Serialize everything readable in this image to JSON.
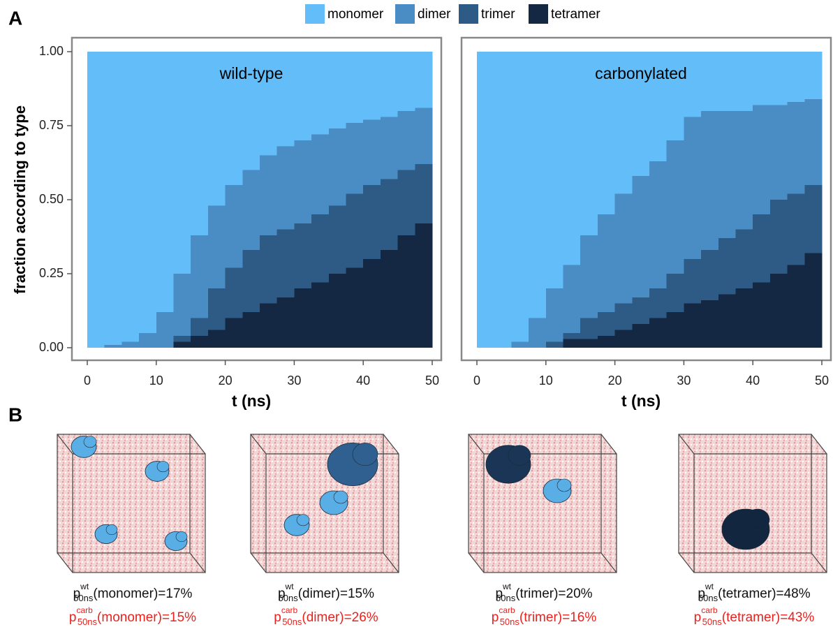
{
  "panel_labels": [
    "A",
    "B"
  ],
  "chart_data": [
    {
      "type": "area",
      "stacked": true,
      "step": true,
      "title": "wild-type",
      "xlabel": "t (ns)",
      "ylabel": "fraction according to type",
      "x": [
        0,
        2.5,
        5,
        7.5,
        10,
        12.5,
        15,
        17.5,
        20,
        22.5,
        25,
        27.5,
        30,
        32.5,
        35,
        37.5,
        40,
        42.5,
        45,
        47.5
      ],
      "series": [
        {
          "name": "monomer",
          "color": "#62bdf8",
          "values": [
            1,
            0.99,
            0.98,
            0.95,
            0.88,
            0.75,
            0.62,
            0.52,
            0.45,
            0.4,
            0.35,
            0.32,
            0.3,
            0.28,
            0.26,
            0.24,
            0.23,
            0.22,
            0.2,
            0.19
          ]
        },
        {
          "name": "dimer",
          "color": "#4a8cc4",
          "values": [
            0,
            0.01,
            0.02,
            0.05,
            0.12,
            0.21,
            0.28,
            0.28,
            0.28,
            0.27,
            0.27,
            0.28,
            0.28,
            0.27,
            0.26,
            0.24,
            0.22,
            0.21,
            0.2,
            0.19
          ]
        },
        {
          "name": "trimer",
          "color": "#2e5a86",
          "values": [
            0,
            0,
            0,
            0,
            0,
            0.02,
            0.06,
            0.14,
            0.17,
            0.21,
            0.23,
            0.23,
            0.22,
            0.23,
            0.23,
            0.25,
            0.25,
            0.24,
            0.22,
            0.2
          ]
        },
        {
          "name": "tetramer",
          "color": "#142844",
          "values": [
            0,
            0,
            0,
            0,
            0,
            0.02,
            0.04,
            0.06,
            0.1,
            0.12,
            0.15,
            0.17,
            0.2,
            0.22,
            0.25,
            0.27,
            0.3,
            0.33,
            0.38,
            0.42
          ]
        }
      ],
      "xlim": [
        0,
        50
      ],
      "ylim": [
        0,
        1
      ],
      "xticks": [
        0,
        10,
        20,
        30,
        40,
        50
      ],
      "yticks": [
        {
          "value": 0,
          "label": "0.00"
        },
        {
          "value": 0.25,
          "label": "0.25"
        },
        {
          "value": 0.5,
          "label": "0.50"
        },
        {
          "value": 0.75,
          "label": "0.75"
        },
        {
          "value": 1,
          "label": "1.00"
        }
      ],
      "legend": "top"
    },
    {
      "type": "area",
      "stacked": true,
      "step": true,
      "title": "carbonylated",
      "xlabel": "t (ns)",
      "x": [
        0,
        2.5,
        5,
        7.5,
        10,
        12.5,
        15,
        17.5,
        20,
        22.5,
        25,
        27.5,
        30,
        32.5,
        35,
        37.5,
        40,
        42.5,
        45,
        47.5
      ],
      "series": [
        {
          "name": "monomer",
          "color": "#62bdf8",
          "values": [
            1,
            1,
            0.98,
            0.9,
            0.8,
            0.72,
            0.62,
            0.55,
            0.48,
            0.42,
            0.37,
            0.3,
            0.22,
            0.2,
            0.2,
            0.2,
            0.18,
            0.18,
            0.17,
            0.16
          ]
        },
        {
          "name": "dimer",
          "color": "#4a8cc4",
          "values": [
            0,
            0,
            0.02,
            0.1,
            0.18,
            0.23,
            0.28,
            0.33,
            0.37,
            0.41,
            0.43,
            0.45,
            0.48,
            0.47,
            0.43,
            0.4,
            0.37,
            0.32,
            0.31,
            0.29
          ]
        },
        {
          "name": "trimer",
          "color": "#2e5a86",
          "values": [
            0,
            0,
            0,
            0,
            0.02,
            0.02,
            0.07,
            0.08,
            0.09,
            0.09,
            0.1,
            0.13,
            0.15,
            0.17,
            0.19,
            0.2,
            0.23,
            0.25,
            0.24,
            0.23
          ]
        },
        {
          "name": "tetramer",
          "color": "#142844",
          "values": [
            0,
            0,
            0,
            0,
            0,
            0.03,
            0.03,
            0.04,
            0.06,
            0.08,
            0.1,
            0.12,
            0.15,
            0.16,
            0.18,
            0.2,
            0.22,
            0.25,
            0.28,
            0.32
          ]
        }
      ],
      "xlim": [
        0,
        50
      ],
      "ylim": [
        0,
        1
      ],
      "xticks": [
        0,
        10,
        20,
        30,
        40,
        50
      ]
    }
  ],
  "panel_b": {
    "items": [
      {
        "symbol": "p",
        "sub": "50ns",
        "wt_sup": "wt",
        "wt_text": "(monomer)=17%",
        "carb_sup": "carb",
        "carb_text": "(monomer)=15%"
      },
      {
        "symbol": "p",
        "sub": "50ns",
        "wt_sup": "wt",
        "wt_text": "(dimer)=15%",
        "carb_sup": "carb",
        "carb_text": "(dimer)=26%"
      },
      {
        "symbol": "p",
        "sub": "50ns",
        "wt_sup": "wt",
        "wt_text": "(trimer)=20%",
        "carb_sup": "carb",
        "carb_text": "(trimer)=16%"
      },
      {
        "symbol": "p",
        "sub": "50ns",
        "wt_sup": "wt",
        "wt_text": "(tetramer)=48%",
        "carb_sup": "carb",
        "carb_text": "(tetramer)=43%"
      }
    ]
  }
}
